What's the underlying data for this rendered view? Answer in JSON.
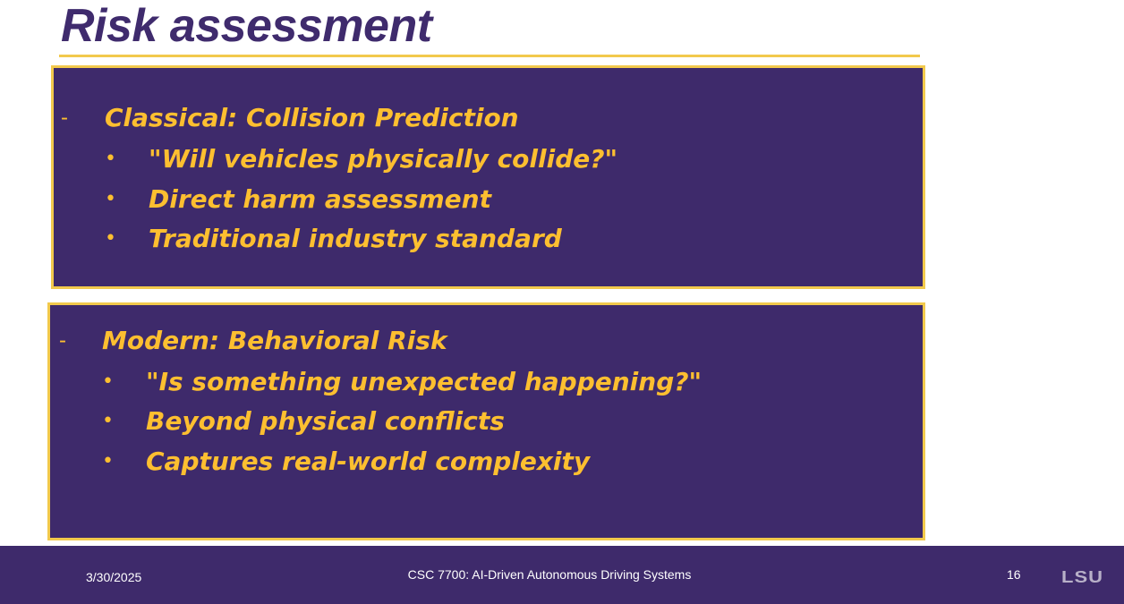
{
  "slide": {
    "title": "Risk assessment",
    "sections": [
      {
        "heading": "Classical: Collision Prediction",
        "bullets": [
          "\"Will vehicles physically collide?\"",
          "Direct harm assessment",
          "Traditional industry standard"
        ]
      },
      {
        "heading": "Modern: Behavioral Risk",
        "bullets": [
          "\"Is something unexpected happening?\"",
          "Beyond physical conflicts",
          "Captures real-world complexity"
        ]
      }
    ],
    "dash_glyph": "-",
    "bullet_glyph": "•"
  },
  "footer": {
    "date": "3/30/2025",
    "course": "CSC 7700:  AI-Driven Autonomous Driving Systems",
    "page_number": "16",
    "logo_text": "LSU"
  },
  "colors": {
    "purple": "#3e2a6b",
    "gold": "#fdbf30",
    "rule": "#f2c94c"
  }
}
